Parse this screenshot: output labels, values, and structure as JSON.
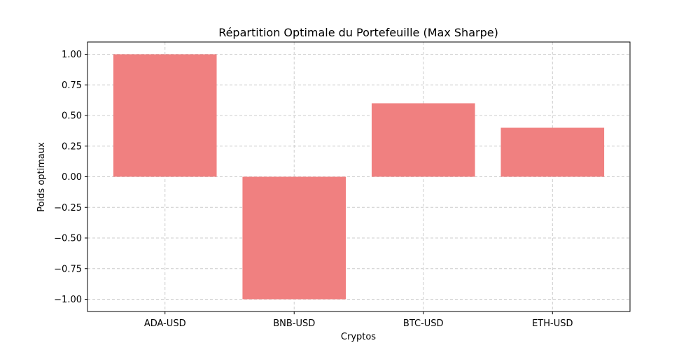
{
  "chart_data": {
    "type": "bar",
    "title": "Répartition Optimale du Portefeuille (Max Sharpe)",
    "xlabel": "Cryptos",
    "ylabel": "Poids optimaux",
    "categories": [
      "ADA-USD",
      "BNB-USD",
      "BTC-USD",
      "ETH-USD"
    ],
    "values": [
      1.0,
      -1.0,
      0.6,
      0.4
    ],
    "ylim": [
      -1.1,
      1.1
    ],
    "yticks": [
      -1.0,
      -0.75,
      -0.5,
      -0.25,
      0.0,
      0.25,
      0.5,
      0.75,
      1.0
    ],
    "ytick_labels": [
      "−1.00",
      "−0.75",
      "−0.50",
      "−0.25",
      "0.00",
      "0.25",
      "0.50",
      "0.75",
      "1.00"
    ],
    "grid": true,
    "bar_color": "#f08080",
    "grid_color": "#cccccc"
  }
}
